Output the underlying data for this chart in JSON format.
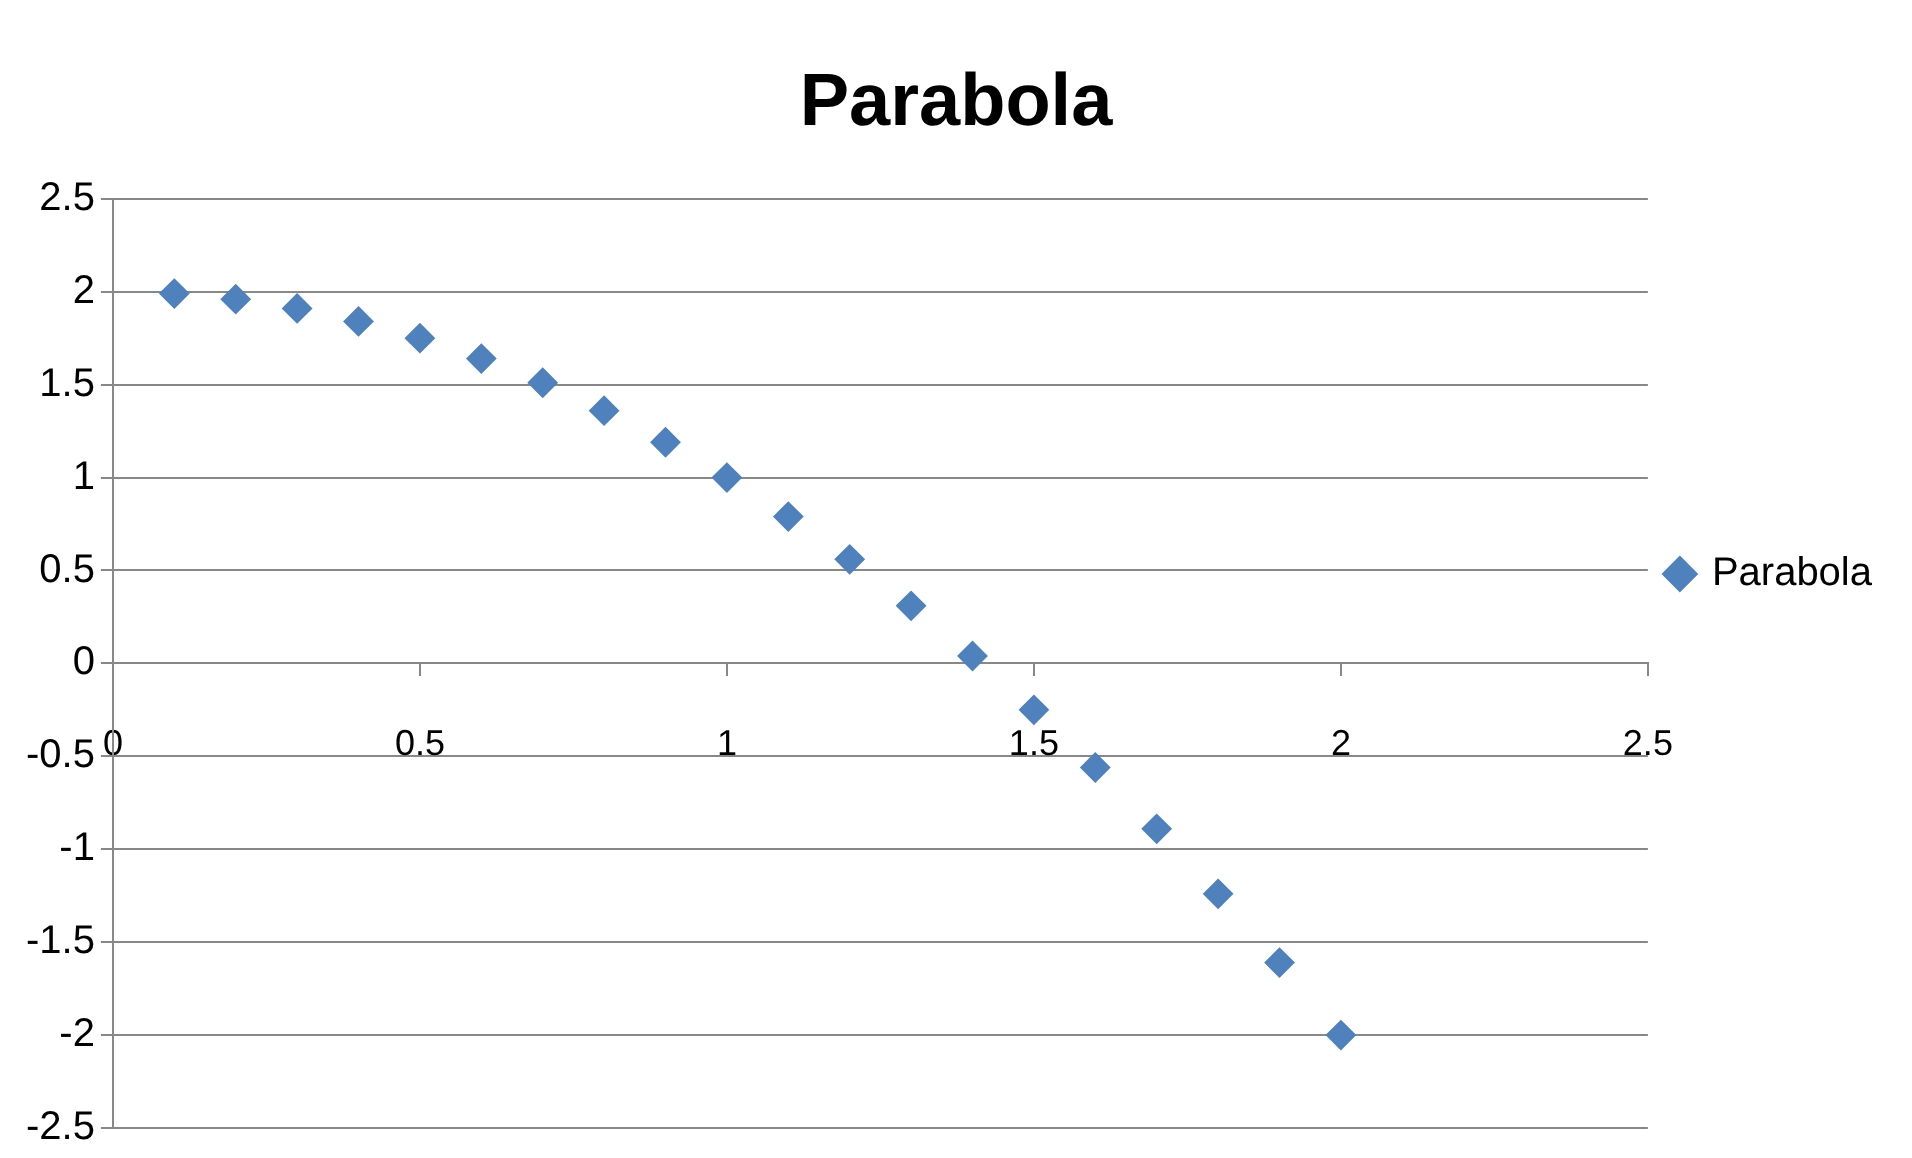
{
  "chart_data": {
    "type": "scatter",
    "title": "Parabola",
    "x": [
      0.1,
      0.2,
      0.3,
      0.4,
      0.5,
      0.6,
      0.7,
      0.8,
      0.9,
      1.0,
      1.1,
      1.2,
      1.3,
      1.4,
      1.5,
      1.6,
      1.7,
      1.8,
      1.9,
      2.0
    ],
    "series": [
      {
        "name": "Parabola",
        "color": "#4f81bd",
        "values": [
          1.99,
          1.96,
          1.91,
          1.84,
          1.75,
          1.64,
          1.51,
          1.36,
          1.19,
          1.0,
          0.79,
          0.56,
          0.31,
          0.04,
          -0.25,
          -0.56,
          -0.89,
          -1.24,
          -1.61,
          -2.0
        ]
      }
    ],
    "xlim": [
      0,
      2.5
    ],
    "xticks": [
      0,
      0.5,
      1,
      1.5,
      2,
      2.5
    ],
    "ylim": [
      -2.5,
      2.5
    ],
    "yticks": [
      -2.5,
      -2,
      -1.5,
      -1,
      -0.5,
      0,
      0.5,
      1,
      1.5,
      2,
      2.5
    ],
    "grid": "y",
    "legend": "right",
    "marker": "diamond"
  }
}
